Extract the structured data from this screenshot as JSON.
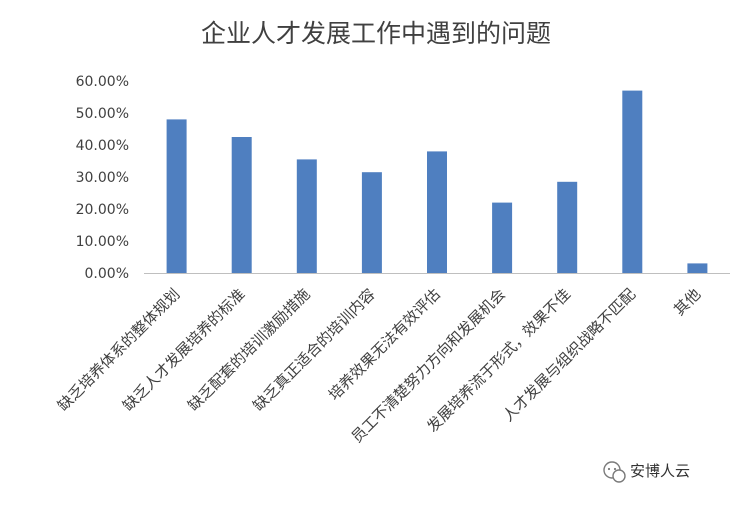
{
  "chart_data": {
    "type": "bar",
    "title": "企业人才发展工作中遇到的问题",
    "xlabel": "",
    "ylabel": "",
    "categories": [
      "缺乏培养体系的整体规划",
      "缺乏人才发展培养的标准",
      "缺乏配套的培训激励措施",
      "缺乏真正适合的培训内容",
      "培养效果无法有效评估",
      "员工不清楚努力方向和发展机会",
      "发展培养流于形式，效果不佳",
      "人才发展与组织战略不匹配",
      "其他"
    ],
    "values": [
      0.48,
      0.425,
      0.355,
      0.315,
      0.38,
      0.22,
      0.285,
      0.57,
      0.03
    ],
    "yticks": [
      "0.00%",
      "10.00%",
      "20.00%",
      "30.00%",
      "40.00%",
      "50.00%",
      "60.00%"
    ],
    "ylim": [
      0,
      0.6
    ],
    "grid": false,
    "legend": "none",
    "bar_color": "#4F7FC0",
    "axis_color": "#BFBFBF",
    "text_color": "#404040"
  },
  "watermark": {
    "icon": "wechat-icon",
    "text": "安博人云"
  }
}
